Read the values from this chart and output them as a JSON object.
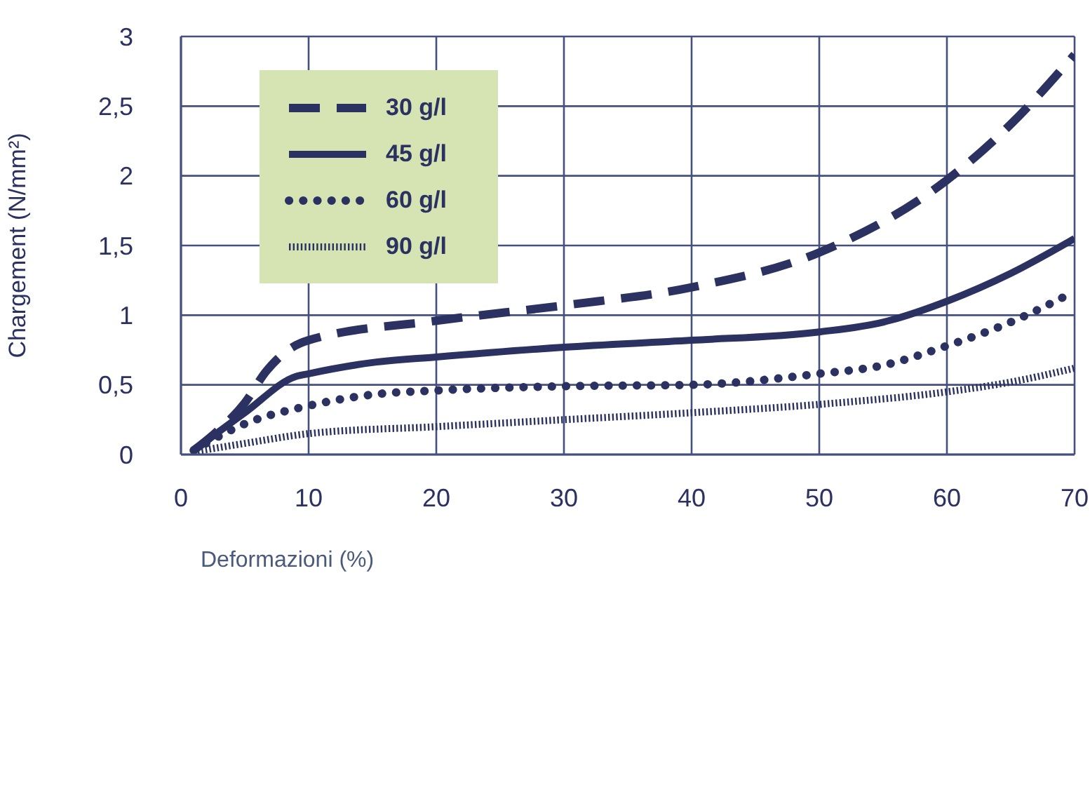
{
  "chart_data": {
    "type": "line",
    "xlabel": "Deformazioni (%)",
    "ylabel": "Chargement (N/mm²)",
    "xlim": [
      0,
      70
    ],
    "xticks": [
      0,
      10,
      20,
      30,
      40,
      50,
      60,
      70
    ],
    "ylim": [
      0,
      3
    ],
    "yticks": [
      0,
      {
        "value": 0.5,
        "label": "0,5"
      },
      1,
      {
        "value": 1.5,
        "label": "1,5"
      },
      2,
      {
        "value": 2.5,
        "label": "2,5"
      },
      3
    ],
    "grid": true,
    "legend": "top left",
    "marker": "none",
    "series": [
      {
        "name": "30 g/l",
        "color": "#2b3160",
        "line_style": "dashed",
        "x": [
          1,
          2.5,
          5,
          6.7,
          8.4,
          10,
          20,
          30,
          40,
          50,
          60,
          65,
          70
        ],
        "values": [
          0.03,
          0.14,
          0.37,
          0.6,
          0.75,
          0.82,
          0.96,
          1.07,
          1.2,
          1.45,
          1.97,
          2.37,
          2.87
        ]
      },
      {
        "name": "45 g/l",
        "color": "#2b3160",
        "line_style": "solid",
        "x": [
          1,
          5,
          9,
          10,
          15,
          20,
          30,
          40,
          50,
          55,
          60,
          65,
          70
        ],
        "values": [
          0.03,
          0.3,
          0.56,
          0.58,
          0.66,
          0.7,
          0.77,
          0.82,
          0.88,
          0.95,
          1.1,
          1.3,
          1.55
        ]
      },
      {
        "name": "60 g/l",
        "color": "#2b3160",
        "line_style": "dotted",
        "x": [
          1,
          5,
          10,
          15,
          20,
          30,
          40,
          50,
          55,
          60,
          65,
          70
        ],
        "values": [
          0.03,
          0.22,
          0.35,
          0.43,
          0.46,
          0.49,
          0.5,
          0.58,
          0.64,
          0.78,
          0.95,
          1.17
        ]
      },
      {
        "name": "90 g/l",
        "color": "#2b3160",
        "line_style": "dotted",
        "x": [
          1,
          5,
          10,
          20,
          30,
          40,
          50,
          60,
          65,
          70
        ],
        "values": [
          0.02,
          0.08,
          0.15,
          0.2,
          0.25,
          0.3,
          0.36,
          0.45,
          0.52,
          0.62
        ]
      }
    ]
  }
}
